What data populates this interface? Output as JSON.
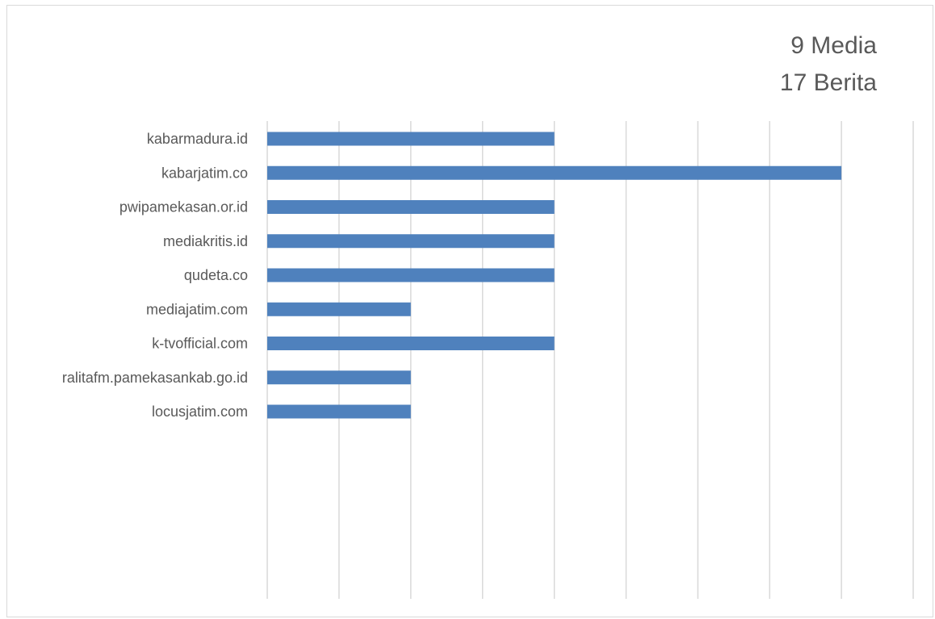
{
  "chart_data": {
    "type": "bar",
    "orientation": "horizontal",
    "title_lines": [
      "9 Media",
      "17 Berita"
    ],
    "categories": [
      "kabarmadura.id",
      "kabarjatim.co",
      "pwipamekasan.or.id",
      "mediakritis.id",
      "qudeta.co",
      "mediajatim.com",
      "k-tvofficial.com",
      "ralitafm.pamekasankab.go.id",
      "locusjatim.com"
    ],
    "values": [
      2,
      4,
      2,
      2,
      2,
      1,
      2,
      1,
      1
    ],
    "xlim": [
      0,
      4.5
    ],
    "x_grid_step": 0.5,
    "grid": true,
    "tick_labels_visible": false,
    "bar_color": "#4f81bd",
    "grid_color": "#d9d9d9",
    "legend": "none"
  }
}
